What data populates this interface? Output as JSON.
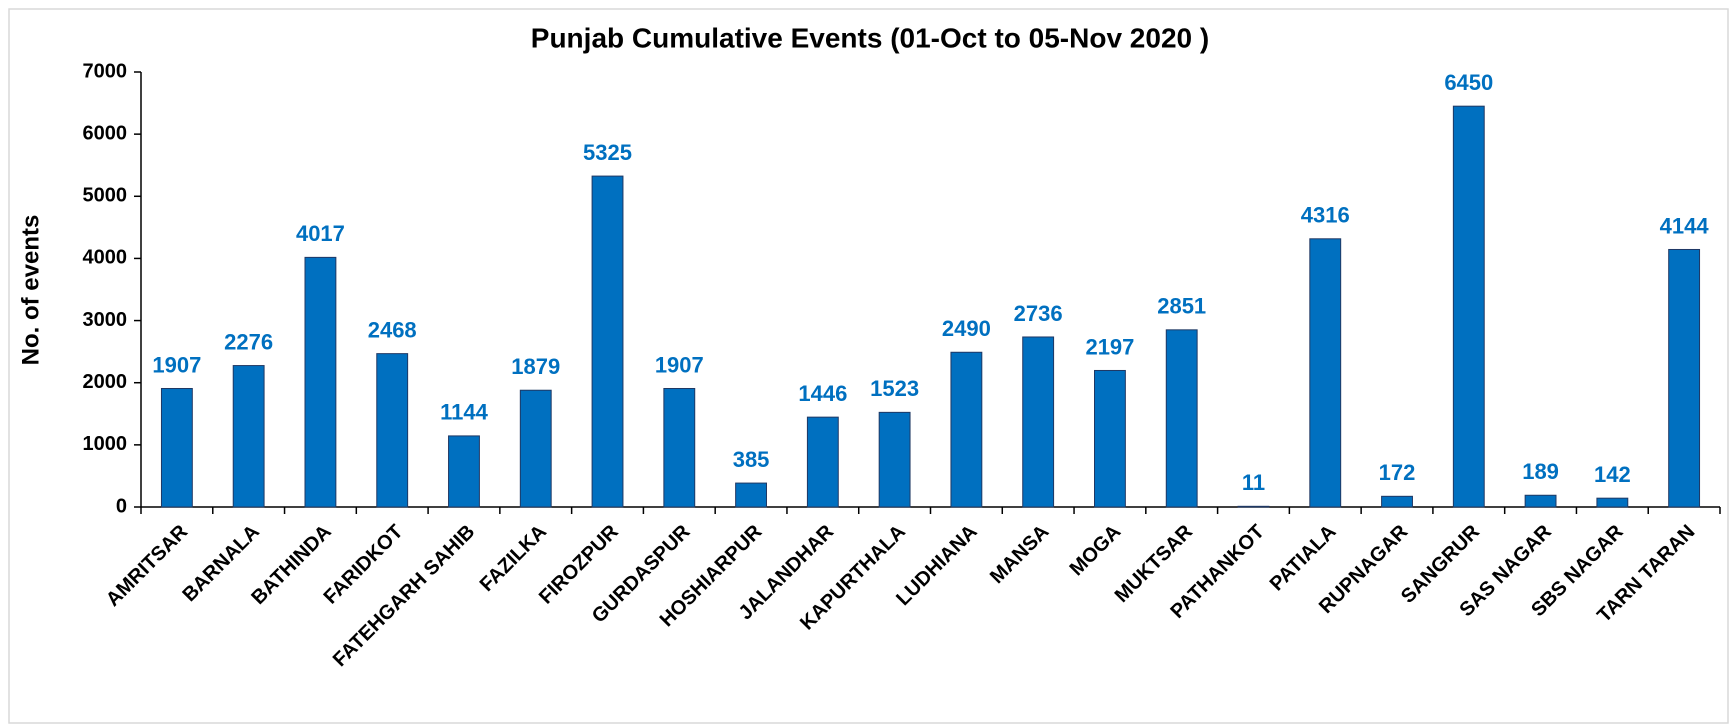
{
  "chart_data": {
    "type": "bar",
    "title": "Punjab Cumulative Events (01-Oct to 05-Nov 2020 )",
    "y_label": "No. of events",
    "categories": [
      "AMRITSAR",
      "BARNALA",
      "BATHINDA",
      "FARIDKOT",
      "FATEHGARH SAHIB",
      "FAZILKA",
      "FIROZPUR",
      "GURDASPUR",
      "HOSHIARPUR",
      "JALANDHAR",
      "KAPURTHALA",
      "LUDHIANA",
      "MANSA",
      "MOGA",
      "MUKTSAR",
      "PATHANKOT",
      "PATIALA",
      "RUPNAGAR",
      "SANGRUR",
      "SAS NAGAR",
      "SBS NAGAR",
      "TARN TARAN"
    ],
    "values": [
      1907,
      2276,
      4017,
      2468,
      1144,
      1879,
      5325,
      1907,
      385,
      1446,
      1523,
      2490,
      2736,
      2197,
      2851,
      11,
      4316,
      172,
      6450,
      189,
      142,
      4144
    ],
    "color": "#0070c0",
    "ylim": [
      0,
      7000
    ],
    "yticks": [
      0,
      1000,
      2000,
      3000,
      4000,
      5000,
      6000,
      7000
    ],
    "grid": false
  }
}
